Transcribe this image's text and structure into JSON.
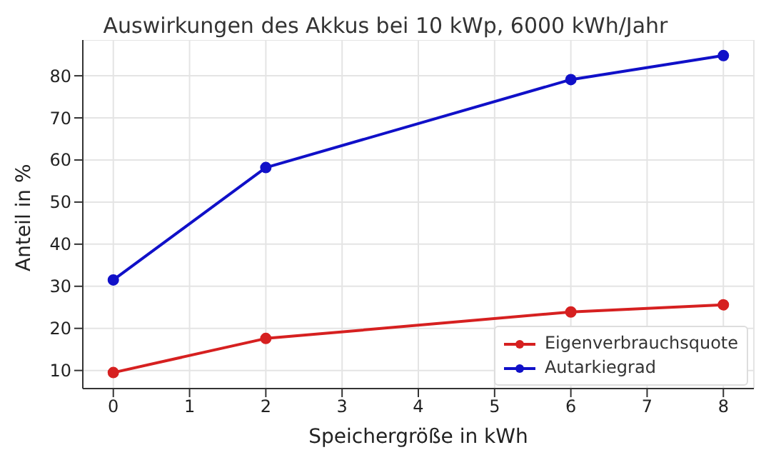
{
  "chart_data": {
    "type": "line",
    "title": "Auswirkungen des Akkus bei 10 kWp, 6000 kWh/Jahr",
    "xlabel": "Speichergröße in kWh",
    "ylabel": "Anteil in %",
    "x": [
      0,
      2,
      6,
      8
    ],
    "series": [
      {
        "name": "Eigenverbrauchsquote",
        "color": "#d62020",
        "values": [
          9.5,
          17.6,
          23.9,
          25.6
        ]
      },
      {
        "name": "Autarkiegrad",
        "color": "#1010c8",
        "values": [
          31.5,
          58.2,
          79.1,
          84.8
        ]
      }
    ],
    "xlim": [
      -0.4,
      8.4
    ],
    "xticks": [
      0,
      1,
      2,
      3,
      4,
      5,
      6,
      7,
      8
    ],
    "ylim": [
      5.7,
      88.5
    ],
    "yticks": [
      10,
      20,
      30,
      40,
      50,
      60,
      70,
      80
    ],
    "grid": true,
    "legend": "bottom right",
    "marker": "circle",
    "line_style": "solid"
  }
}
